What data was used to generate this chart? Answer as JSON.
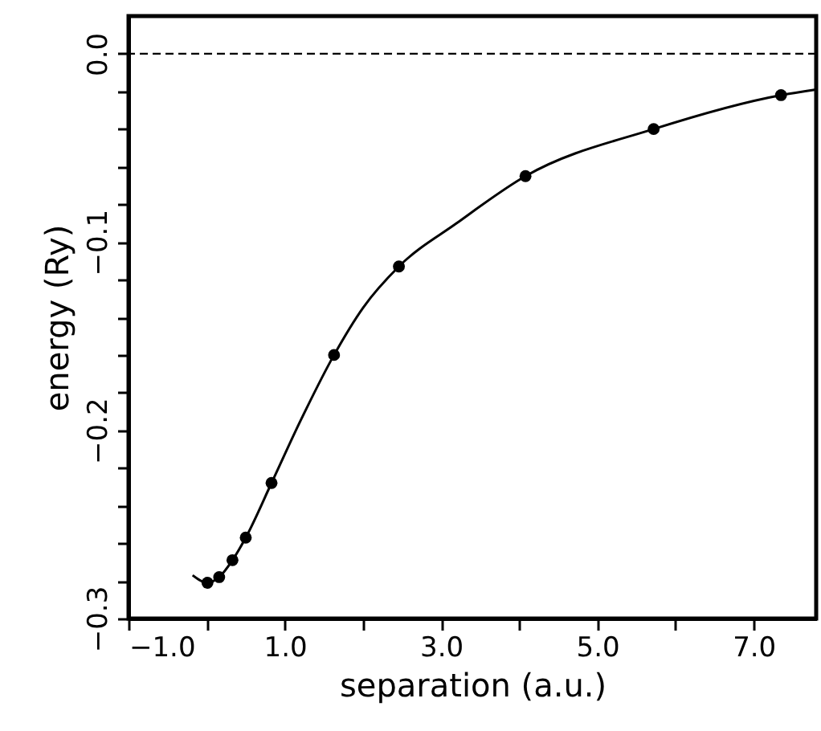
{
  "chart_data": {
    "type": "line",
    "xlabel": "separation (a.u.)",
    "ylabel": "energy (Ry)",
    "xlim": [
      -1,
      7.8
    ],
    "ylim": [
      -0.3,
      0.02
    ],
    "xticks": [
      {
        "value": -1,
        "label": "−1.0"
      },
      {
        "value": 0,
        "label": null
      },
      {
        "value": 1,
        "label": "1.0"
      },
      {
        "value": 2,
        "label": null
      },
      {
        "value": 3,
        "label": "3.0"
      },
      {
        "value": 4,
        "label": null
      },
      {
        "value": 5,
        "label": "5.0"
      },
      {
        "value": 6,
        "label": null
      },
      {
        "value": 7,
        "label": "7.0"
      }
    ],
    "yticks": [
      {
        "value": 0,
        "label": "0.0"
      },
      {
        "value": -0.02,
        "label": null
      },
      {
        "value": -0.04,
        "label": null
      },
      {
        "value": -0.06,
        "label": null
      },
      {
        "value": -0.08,
        "label": null
      },
      {
        "value": -0.1,
        "label": "−0.1"
      },
      {
        "value": -0.12,
        "label": null
      },
      {
        "value": -0.14,
        "label": null
      },
      {
        "value": -0.16,
        "label": null
      },
      {
        "value": -0.18,
        "label": null
      },
      {
        "value": -0.2,
        "label": "−0.2"
      },
      {
        "value": -0.22,
        "label": null
      },
      {
        "value": -0.24,
        "label": null
      },
      {
        "value": -0.26,
        "label": null
      },
      {
        "value": -0.28,
        "label": null
      },
      {
        "value": -0.3,
        "label": "−0.3"
      }
    ],
    "grid": false,
    "series": [
      {
        "color": "#000000",
        "line_style": "solid",
        "x": [
          -0.18,
          0.01,
          0.16,
          0.33,
          0.5,
          0.83,
          1.2,
          1.63,
          2.0,
          2.46,
          3.2,
          4.08,
          5.72,
          7.35,
          7.8
        ],
        "values": [
          -0.277,
          -0.281,
          -0.278,
          -0.269,
          -0.257,
          -0.228,
          -0.195,
          -0.16,
          -0.135,
          -0.113,
          -0.09,
          -0.065,
          -0.04,
          -0.022,
          -0.019
        ]
      },
      {
        "type": "scatter",
        "color": "#000000",
        "marker": "circle",
        "x": [
          0.01,
          0.16,
          0.33,
          0.5,
          0.83,
          1.63,
          2.46,
          4.08,
          5.72,
          7.35
        ],
        "values": [
          -0.281,
          -0.278,
          -0.269,
          -0.257,
          -0.228,
          -0.16,
          -0.113,
          -0.065,
          -0.04,
          -0.022
        ]
      }
    ],
    "ref_lines": [
      {
        "axis": "y",
        "value": 0,
        "label": null,
        "color": "#000000",
        "line_style": "dashed"
      }
    ]
  }
}
